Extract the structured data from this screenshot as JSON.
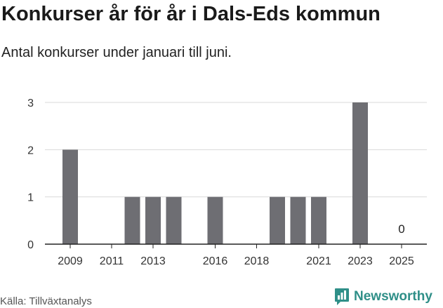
{
  "header": {
    "title": "Konkurser år för år i Dals-Eds kommun",
    "subtitle": "Antal konkurser under januari till juni."
  },
  "footer": {
    "source": "Källa: Tillväxtanalys",
    "brand": "Newsworthy",
    "brand_icon": "bar-chart-logo-icon"
  },
  "colors": {
    "bar": "#6e6e73",
    "grid": "#d9d9d9",
    "brand": "#2f8f88"
  },
  "chart_data": {
    "type": "bar",
    "categories": [
      "2009",
      "2010",
      "2011",
      "2012",
      "2013",
      "2014",
      "2015",
      "2016",
      "2017",
      "2018",
      "2019",
      "2020",
      "2021",
      "2022",
      "2023",
      "2024",
      "2025"
    ],
    "values": [
      2,
      0,
      0,
      1,
      1,
      1,
      0,
      1,
      0,
      0,
      1,
      1,
      1,
      0,
      3,
      null,
      0
    ],
    "x_tick_labels": [
      "2009",
      "2011",
      "2013",
      "2016",
      "2018",
      "2021",
      "2023",
      "2025"
    ],
    "y_ticks": [
      0,
      1,
      2,
      3
    ],
    "ylim": [
      0,
      3
    ],
    "grid": true,
    "data_labels": [
      {
        "category": "2025",
        "text": "0"
      }
    ],
    "title": "Konkurser år för år i Dals-Eds kommun",
    "xlabel": "",
    "ylabel": ""
  }
}
